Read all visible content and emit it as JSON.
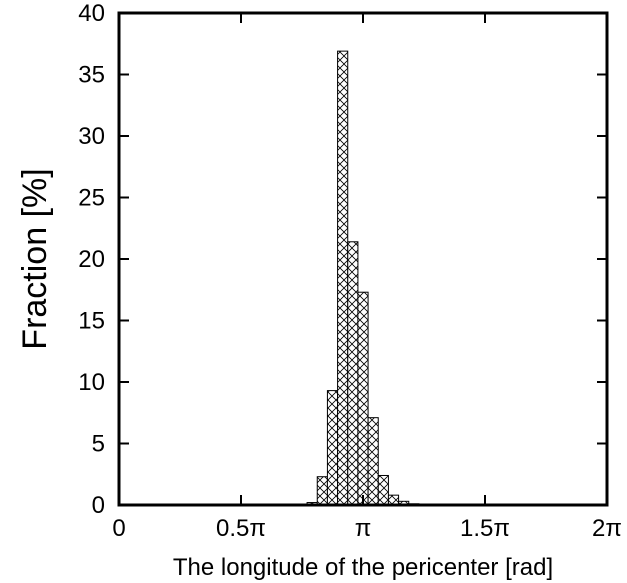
{
  "chart_data": {
    "type": "bar",
    "title": "",
    "xlabel": "The longitude of the pericenter [rad]",
    "ylabel": "Fraction [%]",
    "xlim": [
      0,
      6.2832
    ],
    "ylim": [
      0,
      40
    ],
    "x_ticks": [
      {
        "value": 0,
        "label": "0"
      },
      {
        "value": 1.5708,
        "label": "0.5π"
      },
      {
        "value": 3.1416,
        "label": "π"
      },
      {
        "value": 4.7124,
        "label": "1.5π"
      },
      {
        "value": 6.2832,
        "label": "2π"
      }
    ],
    "y_ticks": [
      0,
      5,
      10,
      15,
      20,
      25,
      30,
      35,
      40
    ],
    "bin_width": 0.1309,
    "bins": [
      {
        "x": 2.4871,
        "value": 0.2
      },
      {
        "x": 2.618,
        "value": 2.3
      },
      {
        "x": 2.7489,
        "value": 9.3
      },
      {
        "x": 2.8798,
        "value": 36.9
      },
      {
        "x": 3.0107,
        "value": 21.4
      },
      {
        "x": 3.1416,
        "value": 17.3
      },
      {
        "x": 3.2725,
        "value": 7.1
      },
      {
        "x": 3.4034,
        "value": 2.4
      },
      {
        "x": 3.5343,
        "value": 0.8
      },
      {
        "x": 3.6652,
        "value": 0.3
      },
      {
        "x": 3.7961,
        "value": 0.1
      }
    ],
    "grid": false,
    "legend": "none"
  }
}
